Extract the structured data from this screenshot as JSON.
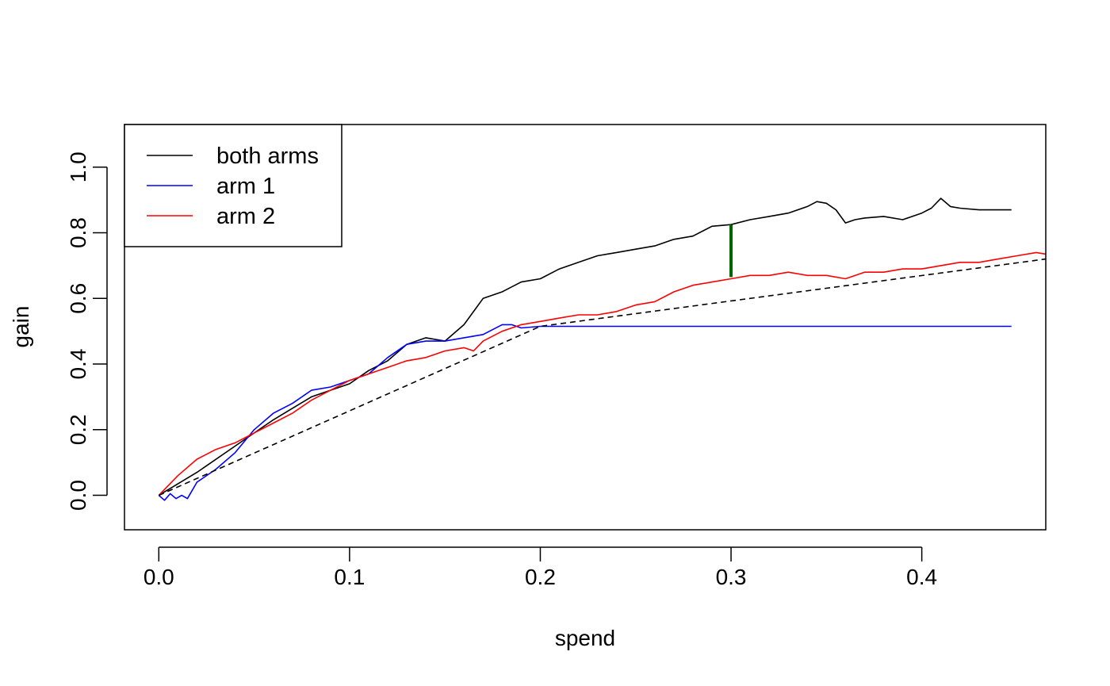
{
  "chart_data": {
    "type": "line",
    "title": "",
    "xlabel": "spend",
    "ylabel": "gain",
    "xlim": [
      -0.018,
      0.465
    ],
    "ylim": [
      -0.105,
      1.13
    ],
    "xticks": [
      0.0,
      0.1,
      0.2,
      0.3,
      0.4
    ],
    "xtick_labels": [
      "0.0",
      "0.1",
      "0.2",
      "0.3",
      "0.4"
    ],
    "yticks": [
      0.0,
      0.2,
      0.4,
      0.6,
      0.8,
      1.0
    ],
    "ytick_labels": [
      "0.0",
      "0.2",
      "0.4",
      "0.6",
      "0.8",
      "1.0"
    ],
    "grid": false,
    "legend": {
      "position": "top-left"
    },
    "series": [
      {
        "name": "both arms",
        "color": "#000000",
        "style": "solid",
        "x": [
          0.0,
          0.02,
          0.04,
          0.06,
          0.08,
          0.1,
          0.11,
          0.12,
          0.13,
          0.14,
          0.15,
          0.16,
          0.17,
          0.18,
          0.19,
          0.2,
          0.21,
          0.22,
          0.23,
          0.24,
          0.25,
          0.26,
          0.27,
          0.28,
          0.29,
          0.3,
          0.31,
          0.32,
          0.33,
          0.34,
          0.345,
          0.35,
          0.355,
          0.36,
          0.365,
          0.37,
          0.38,
          0.39,
          0.4,
          0.405,
          0.41,
          0.415,
          0.42,
          0.43,
          0.44,
          0.447
        ],
        "y": [
          0.0,
          0.07,
          0.15,
          0.23,
          0.3,
          0.34,
          0.38,
          0.41,
          0.46,
          0.48,
          0.47,
          0.52,
          0.6,
          0.62,
          0.65,
          0.66,
          0.69,
          0.71,
          0.73,
          0.74,
          0.75,
          0.76,
          0.78,
          0.79,
          0.82,
          0.825,
          0.84,
          0.85,
          0.86,
          0.88,
          0.895,
          0.89,
          0.87,
          0.83,
          0.84,
          0.845,
          0.85,
          0.84,
          0.86,
          0.875,
          0.905,
          0.88,
          0.875,
          0.87,
          0.87,
          0.87
        ]
      },
      {
        "name": "arm 1",
        "color": "#0000ff",
        "style": "solid",
        "x": [
          0.0,
          0.003,
          0.006,
          0.009,
          0.012,
          0.015,
          0.02,
          0.03,
          0.04,
          0.05,
          0.06,
          0.07,
          0.08,
          0.09,
          0.1,
          0.11,
          0.12,
          0.13,
          0.14,
          0.15,
          0.16,
          0.17,
          0.18,
          0.185,
          0.19,
          0.2,
          0.447
        ],
        "y": [
          0.0,
          -0.015,
          0.005,
          -0.01,
          0.0,
          -0.01,
          0.04,
          0.08,
          0.13,
          0.2,
          0.25,
          0.28,
          0.32,
          0.33,
          0.35,
          0.37,
          0.42,
          0.46,
          0.47,
          0.47,
          0.48,
          0.49,
          0.52,
          0.52,
          0.51,
          0.515,
          0.515
        ]
      },
      {
        "name": "arm 2",
        "color": "#ff0000",
        "style": "solid",
        "x": [
          0.0,
          0.01,
          0.02,
          0.03,
          0.04,
          0.05,
          0.06,
          0.07,
          0.08,
          0.09,
          0.1,
          0.11,
          0.12,
          0.13,
          0.14,
          0.15,
          0.16,
          0.165,
          0.17,
          0.18,
          0.19,
          0.2,
          0.21,
          0.22,
          0.23,
          0.24,
          0.25,
          0.26,
          0.27,
          0.28,
          0.29,
          0.3,
          0.31,
          0.32,
          0.33,
          0.34,
          0.35,
          0.36,
          0.37,
          0.38,
          0.39,
          0.4,
          0.41,
          0.42,
          0.43,
          0.44,
          0.45,
          0.46,
          0.465
        ],
        "y": [
          0.0,
          0.06,
          0.11,
          0.14,
          0.16,
          0.19,
          0.22,
          0.25,
          0.29,
          0.32,
          0.35,
          0.37,
          0.39,
          0.41,
          0.42,
          0.44,
          0.45,
          0.44,
          0.47,
          0.5,
          0.52,
          0.53,
          0.54,
          0.55,
          0.55,
          0.56,
          0.58,
          0.59,
          0.62,
          0.64,
          0.65,
          0.66,
          0.67,
          0.67,
          0.68,
          0.67,
          0.67,
          0.66,
          0.68,
          0.68,
          0.69,
          0.69,
          0.7,
          0.71,
          0.71,
          0.72,
          0.73,
          0.74,
          0.735
        ]
      },
      {
        "name": "",
        "color": "#000000",
        "style": "dashed",
        "x": [
          0.0,
          0.2,
          0.465
        ],
        "y": [
          0.0,
          0.515,
          0.72
        ]
      }
    ],
    "annotations": [
      {
        "type": "vertical-segment",
        "x": 0.3,
        "y0": 0.665,
        "y1": 0.825,
        "color": "#006400"
      }
    ]
  }
}
